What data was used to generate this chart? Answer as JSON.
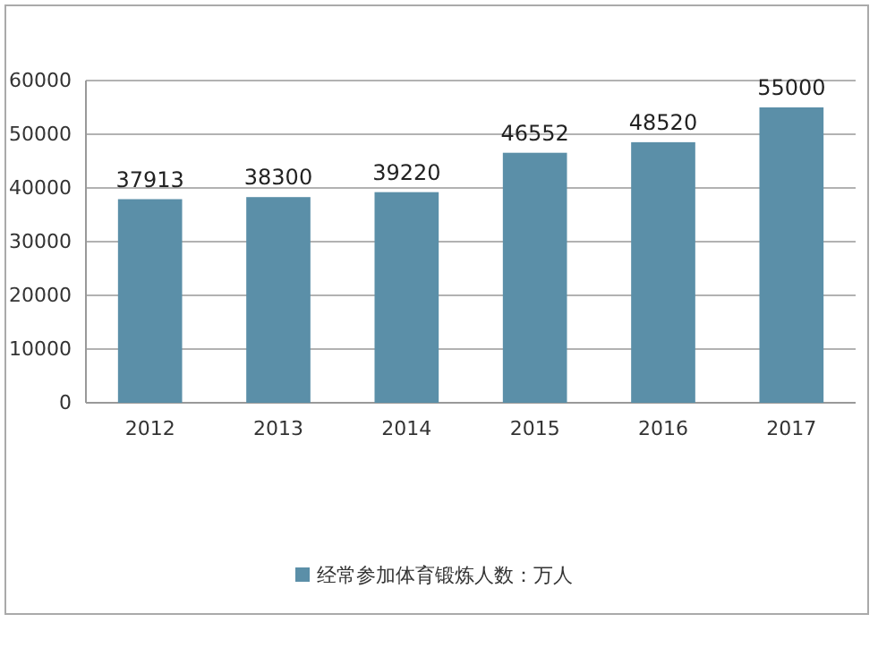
{
  "chart_data": {
    "type": "bar",
    "categories": [
      "2012",
      "2013",
      "2014",
      "2015",
      "2016",
      "2017"
    ],
    "series": [
      {
        "name": "经常参加体育锻炼人数：万人",
        "color": "#5b8fa8",
        "values": [
          37913,
          38300,
          39220,
          46552,
          48520,
          55000
        ]
      }
    ],
    "ylim": [
      0,
      60000
    ],
    "yticks": [
      0,
      10000,
      20000,
      30000,
      40000,
      50000,
      60000
    ],
    "grid": "y",
    "data_labels": true,
    "legend": "bottom"
  }
}
